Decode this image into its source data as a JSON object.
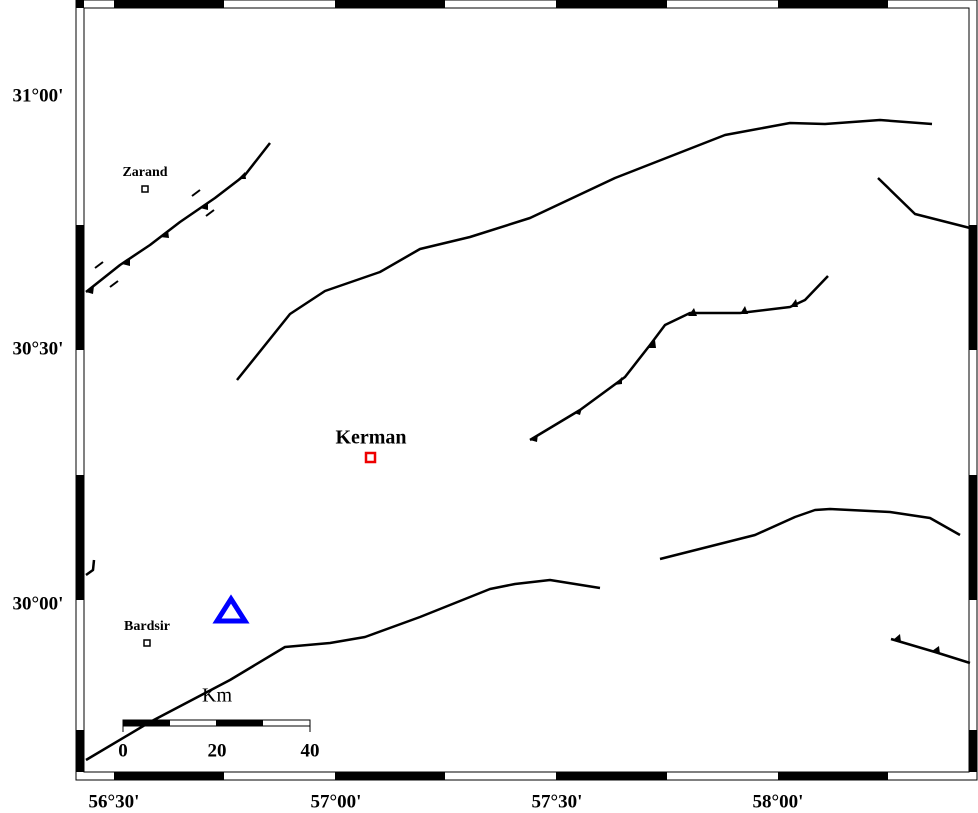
{
  "axes": {
    "lat_labels": [
      "31°00'",
      "30°30'",
      "30°00'"
    ],
    "lon_labels": [
      "56°30'",
      "57°00'",
      "57°30'",
      "58°00'"
    ]
  },
  "places": [
    {
      "label": "Zarand"
    },
    {
      "label": "Kerman"
    },
    {
      "label": "Bardsir"
    }
  ],
  "scale_bar": {
    "unit": "Km",
    "labels": [
      "0",
      "20",
      "40"
    ]
  }
}
